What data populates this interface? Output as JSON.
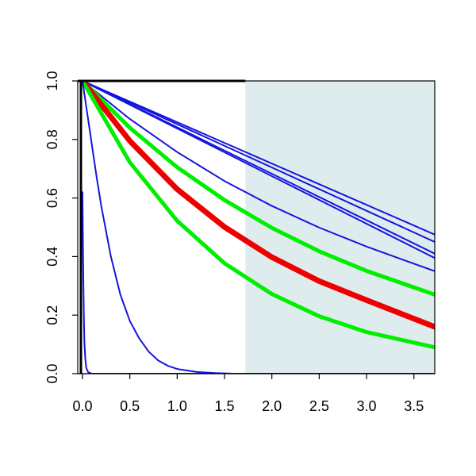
{
  "chart_data": {
    "type": "line",
    "title": "",
    "xlabel": "",
    "ylabel": "",
    "xlim": [
      -0.05,
      3.72
    ],
    "ylim": [
      0.0,
      1.0
    ],
    "xticks": [
      "0.0",
      "0.5",
      "1.0",
      "1.5",
      "2.0",
      "2.5",
      "3.0",
      "3.5"
    ],
    "yticks": [
      "0.0",
      "0.2",
      "0.4",
      "0.6",
      "0.8",
      "1.0"
    ],
    "grid": false,
    "legend": "none",
    "shaded_region": {
      "x_start": 1.72,
      "x_end": 3.72,
      "color": "#deeced"
    },
    "colors": {
      "blue": "#1414e0",
      "green": "#00ee00",
      "red": "#ee0000",
      "axis": "#000000"
    },
    "series": [
      {
        "color": "#1414e0",
        "stroke": "thin",
        "x": [
          0,
          3.72
        ],
        "y": [
          1.0,
          0.475
        ]
      },
      {
        "color": "#1414e0",
        "stroke": "thin",
        "x": [
          0,
          3.72
        ],
        "y": [
          1.0,
          0.45
        ]
      },
      {
        "color": "#1414e0",
        "stroke": "thin",
        "x": [
          0,
          3.72
        ],
        "y": [
          1.0,
          0.41
        ]
      },
      {
        "color": "#1414e0",
        "stroke": "thin",
        "x": [
          0,
          3.72
        ],
        "y": [
          1.0,
          0.395
        ]
      },
      {
        "color": "#1414e0",
        "stroke": "thin",
        "x": [
          0,
          0.5,
          1.0,
          1.5,
          2.0,
          2.5,
          3.0,
          3.72
        ],
        "y": [
          1.0,
          0.87,
          0.757,
          0.658,
          0.573,
          0.499,
          0.434,
          0.35
        ]
      },
      {
        "color": "#00ee00",
        "stroke": "medium",
        "x": [
          0,
          0.5,
          1.0,
          1.5,
          2.0,
          2.5,
          3.0,
          3.72
        ],
        "y": [
          1.0,
          0.84,
          0.705,
          0.593,
          0.498,
          0.418,
          0.351,
          0.27
        ]
      },
      {
        "color": "#ee0000",
        "stroke": "thick",
        "x": [
          0,
          0.5,
          1.0,
          1.5,
          2.0,
          2.5,
          3.0,
          3.72
        ],
        "y": [
          1.0,
          0.795,
          0.63,
          0.501,
          0.398,
          0.316,
          0.251,
          0.16
        ]
      },
      {
        "color": "#00ee00",
        "stroke": "medium",
        "x": [
          0,
          0.5,
          1.0,
          1.5,
          2.0,
          2.5,
          3.0,
          3.72
        ],
        "y": [
          1.0,
          0.722,
          0.522,
          0.377,
          0.272,
          0.196,
          0.142,
          0.09
        ]
      },
      {
        "color": "#1414e0",
        "stroke": "thin",
        "x": [
          0,
          0.05,
          0.1,
          0.15,
          0.2,
          0.3,
          0.4,
          0.5,
          0.6,
          0.7,
          0.8,
          0.9,
          1.0,
          1.2,
          1.4,
          1.6,
          2.0,
          3.72
        ],
        "y": [
          1.0,
          0.89,
          0.78,
          0.67,
          0.57,
          0.4,
          0.27,
          0.18,
          0.12,
          0.075,
          0.045,
          0.027,
          0.016,
          0.006,
          0.002,
          0.0,
          0.0,
          0.0
        ]
      },
      {
        "color": "#1414e0",
        "stroke": "thin",
        "x": [
          0,
          0.005,
          0.01,
          0.015,
          0.02,
          0.03,
          0.04,
          0.06,
          0.1,
          3.72
        ],
        "y": [
          0.62,
          0.44,
          0.3,
          0.19,
          0.11,
          0.05,
          0.02,
          0.005,
          0.0,
          0.0
        ]
      }
    ]
  }
}
